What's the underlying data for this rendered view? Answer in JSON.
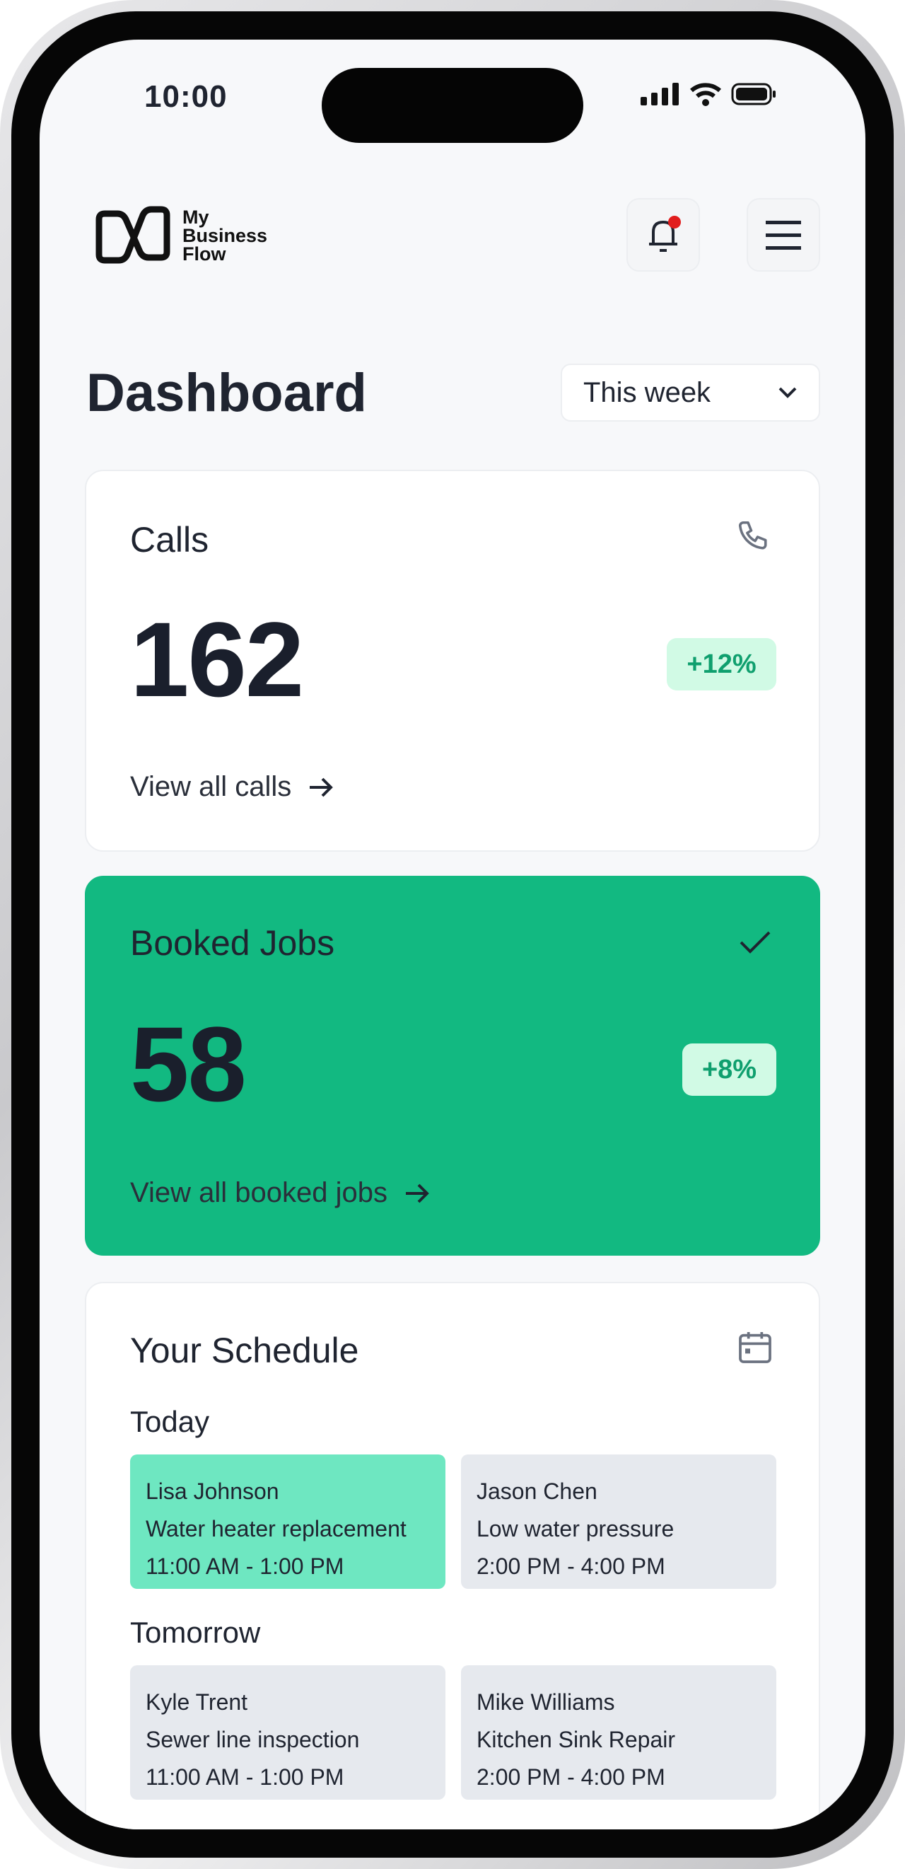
{
  "status_bar": {
    "time": "10:00"
  },
  "header": {
    "logo_text": [
      "My",
      "Business",
      "Flow"
    ],
    "notification_dot_color": "#e11d1d"
  },
  "page": {
    "title": "Dashboard",
    "period_select": "This week"
  },
  "calls": {
    "title": "Calls",
    "value": "162",
    "change": "+12%",
    "link": "View all calls"
  },
  "booked": {
    "title": "Booked Jobs",
    "value": "58",
    "change": "+8%",
    "link": "View all booked jobs",
    "color": "#12b981"
  },
  "schedule": {
    "title": "Your Schedule",
    "groups": [
      {
        "label": "Today",
        "items": [
          {
            "name": "Lisa Johnson",
            "job": "Water heater replacement",
            "time": "11:00 AM - 1:00 PM",
            "highlighted": true
          },
          {
            "name": "Jason Chen",
            "job": "Low water pressure",
            "time": "2:00 PM - 4:00 PM",
            "highlighted": false
          }
        ]
      },
      {
        "label": "Tomorrow",
        "items": [
          {
            "name": "Kyle Trent",
            "job": "Sewer line inspection",
            "time": "11:00 AM - 1:00 PM",
            "highlighted": false
          },
          {
            "name": "Mike Williams",
            "job": "Kitchen Sink Repair",
            "time": "2:00 PM - 4:00 PM",
            "highlighted": false
          }
        ]
      }
    ]
  }
}
